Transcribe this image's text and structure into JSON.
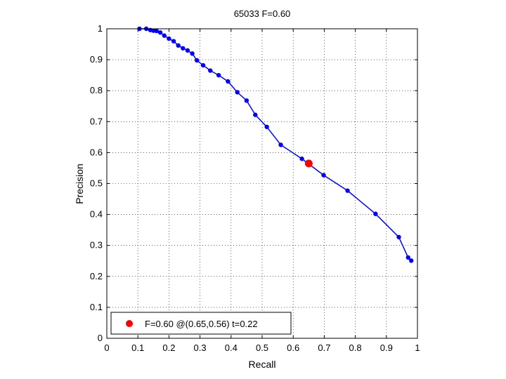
{
  "chart_data": {
    "type": "line",
    "title": "65033 F=0.60",
    "xlabel": "Recall",
    "ylabel": "Precision",
    "xlim": [
      0,
      1
    ],
    "ylim": [
      0,
      1
    ],
    "xticks": [
      0,
      0.1,
      0.2,
      0.3,
      0.4,
      0.5,
      0.6,
      0.7,
      0.8,
      0.9,
      1
    ],
    "yticks": [
      0,
      0.1,
      0.2,
      0.3,
      0.4,
      0.5,
      0.6,
      0.7,
      0.8,
      0.9,
      1
    ],
    "xtick_labels": [
      "0",
      "0.1",
      "0.2",
      "0.3",
      "0.4",
      "0.5",
      "0.6",
      "0.7",
      "0.8",
      "0.9",
      "1"
    ],
    "ytick_labels": [
      "0",
      "0.1",
      "0.2",
      "0.3",
      "0.4",
      "0.5",
      "0.6",
      "0.7",
      "0.8",
      "0.9",
      "1"
    ],
    "grid": true,
    "series": [
      {
        "color": "#0000ff",
        "x": [
          0.105,
          0.127,
          0.14,
          0.15,
          0.16,
          0.172,
          0.185,
          0.2,
          0.215,
          0.23,
          0.245,
          0.26,
          0.275,
          0.29,
          0.31,
          0.333,
          0.36,
          0.39,
          0.42,
          0.45,
          0.478,
          0.515,
          0.56,
          0.628,
          0.698,
          0.775,
          0.865,
          0.94,
          0.97,
          0.98
        ],
        "y": [
          1.0,
          1.0,
          0.996,
          0.994,
          0.993,
          0.988,
          0.978,
          0.968,
          0.96,
          0.946,
          0.937,
          0.93,
          0.92,
          0.898,
          0.882,
          0.865,
          0.85,
          0.83,
          0.795,
          0.768,
          0.722,
          0.683,
          0.625,
          0.58,
          0.527,
          0.477,
          0.402,
          0.327,
          0.261,
          0.251
        ]
      }
    ],
    "highlight_point": {
      "x": 0.65,
      "y": 0.565,
      "color": "#ff0000"
    },
    "legend": {
      "placement": "bottom-left",
      "entries": [
        {
          "label": "F=0.60 @(0.65,0.56) t=0.22",
          "color": "#ff0000"
        }
      ]
    }
  }
}
